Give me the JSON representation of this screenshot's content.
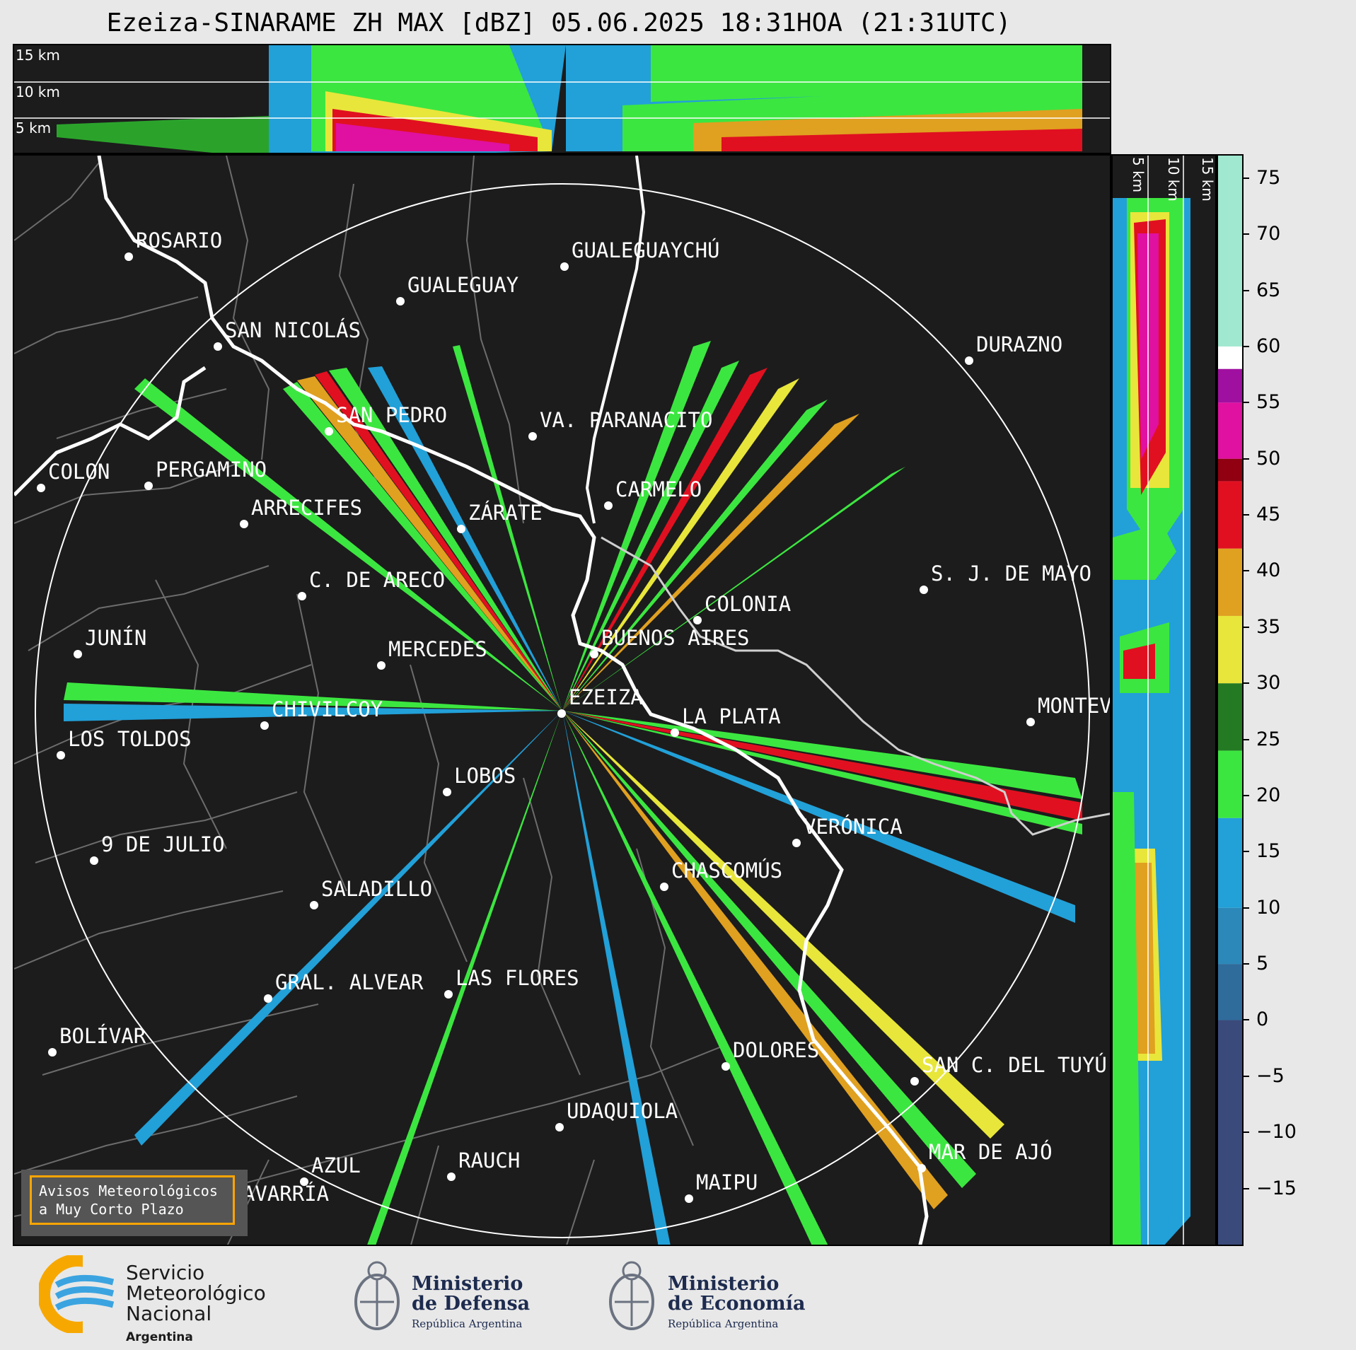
{
  "title": "Ezeiza-SINARAME ZH MAX [dBZ] 05.06.2025 18:31HOA (21:31UTC)",
  "top_panel": {
    "height_labels": [
      "15 km",
      "10 km",
      "5 km"
    ]
  },
  "side_panel": {
    "height_labels": [
      "5 km",
      "10 km",
      "15 km"
    ]
  },
  "colorbar": {
    "unit": "dBZ",
    "ticks": [
      "75",
      "70",
      "65",
      "60",
      "55",
      "50",
      "45",
      "40",
      "35",
      "30",
      "25",
      "20",
      "15",
      "10",
      "5",
      "0",
      "−5",
      "−10",
      "−15"
    ],
    "tick_values": [
      75,
      70,
      65,
      60,
      55,
      50,
      45,
      40,
      35,
      30,
      25,
      20,
      15,
      10,
      5,
      0,
      -5,
      -10,
      -15
    ],
    "range": [
      -20,
      77
    ],
    "stops": [
      {
        "from": -20,
        "to": 0,
        "color": "#3a4a7a"
      },
      {
        "from": 0,
        "to": 5,
        "color": "#2f6c9c"
      },
      {
        "from": 5,
        "to": 10,
        "color": "#2b88b8"
      },
      {
        "from": 10,
        "to": 18,
        "color": "#22a0d8"
      },
      {
        "from": 18,
        "to": 24,
        "color": "#3ce640"
      },
      {
        "from": 24,
        "to": 30,
        "color": "#237a23"
      },
      {
        "from": 30,
        "to": 36,
        "color": "#e8e63a"
      },
      {
        "from": 36,
        "to": 42,
        "color": "#e0a020"
      },
      {
        "from": 42,
        "to": 48,
        "color": "#e01020"
      },
      {
        "from": 48,
        "to": 50,
        "color": "#900010"
      },
      {
        "from": 50,
        "to": 55,
        "color": "#e010a0"
      },
      {
        "from": 55,
        "to": 58,
        "color": "#a010a0"
      },
      {
        "from": 58,
        "to": 60,
        "color": "#ffffff"
      },
      {
        "from": 60,
        "to": 77,
        "color": "#a0e8d0"
      }
    ]
  },
  "map": {
    "radar_site": "EZEIZA",
    "cities": [
      {
        "name": "ROSARIO"
      },
      {
        "name": "GUALEGUAYCHÚ"
      },
      {
        "name": "GUALEGUAY"
      },
      {
        "name": "SAN NICOLÁS"
      },
      {
        "name": "DURAZNO"
      },
      {
        "name": "SAN PEDRO"
      },
      {
        "name": "VA. PARANACITO"
      },
      {
        "name": "COLON"
      },
      {
        "name": "PERGAMINO"
      },
      {
        "name": "CARMELO"
      },
      {
        "name": "ARRECIFES"
      },
      {
        "name": "ZÁRATE"
      },
      {
        "name": "C. DE ARECO"
      },
      {
        "name": "S. J. DE MAYO"
      },
      {
        "name": "COLONIA"
      },
      {
        "name": "JUNÍN"
      },
      {
        "name": "BUENOS AIRES"
      },
      {
        "name": "MERCEDES"
      },
      {
        "name": "EZEIZA"
      },
      {
        "name": "MONTEVIDEO"
      },
      {
        "name": "CHIVILCOY"
      },
      {
        "name": "LA PLATA"
      },
      {
        "name": "LOS TOLDOS"
      },
      {
        "name": "LOBOS"
      },
      {
        "name": "VERÓNICA"
      },
      {
        "name": "9 DE JULIO"
      },
      {
        "name": "CHASCOMÚS"
      },
      {
        "name": "SALADILLO"
      },
      {
        "name": "GRAL. ALVEAR"
      },
      {
        "name": "LAS FLORES"
      },
      {
        "name": "BOLÍVAR"
      },
      {
        "name": "DOLORES"
      },
      {
        "name": "SAN C. DEL TUYÚ"
      },
      {
        "name": "UDAQUIOLA"
      },
      {
        "name": "MAR DE AJÓ"
      },
      {
        "name": "AZUL"
      },
      {
        "name": "RAUCH"
      },
      {
        "name": "OLAVARRÍA"
      },
      {
        "name": "MAIPU"
      }
    ]
  },
  "avisos": {
    "line1": "Avisos Meteorológicos",
    "line2": "a Muy Corto Plazo"
  },
  "logos": {
    "smn": {
      "line1": "Servicio",
      "line2": "Meteorológico",
      "line3": "Nacional",
      "line4": "Argentina"
    },
    "defensa": {
      "line1": "Ministerio",
      "line2": "de Defensa",
      "line3": "República Argentina"
    },
    "economia": {
      "line1": "Ministerio",
      "line2": "de Economía",
      "line3": "República Argentina"
    }
  }
}
